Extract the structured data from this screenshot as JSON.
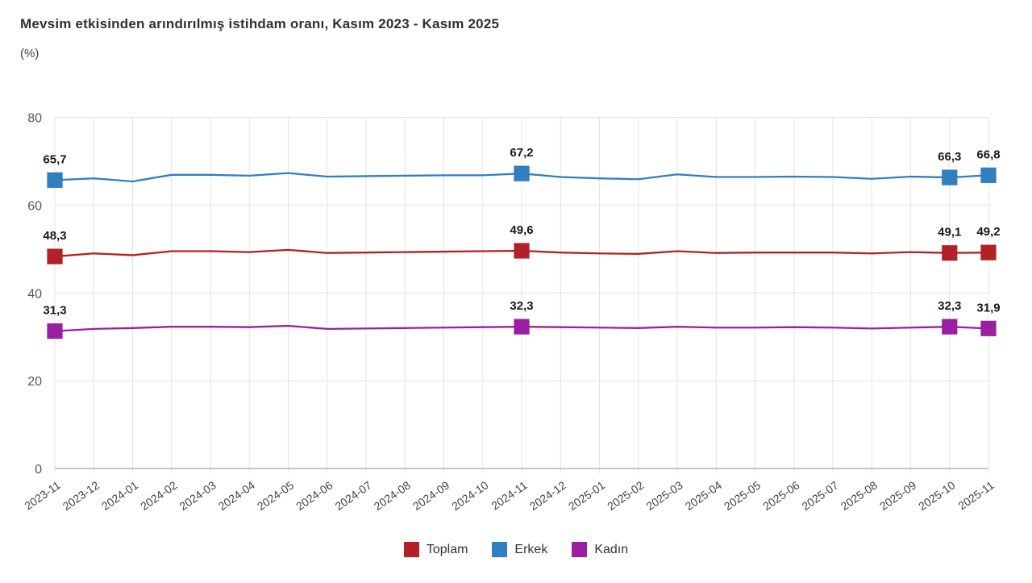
{
  "header": {
    "title": "Mevsim etkisinden arındırılmış istihdam oranı, Kasım 2023 - Kasım 2025",
    "subtitle": "(%)"
  },
  "colors": {
    "total": "#b32025",
    "male": "#2f7fc1",
    "female": "#9c1fa1",
    "grid": "#e3e3e3",
    "axis": "#b5b5b5",
    "y_tick_text": "#555555",
    "x_tick_text": "#424242",
    "data_label_text": "#1a1a1a"
  },
  "chart_data": {
    "type": "line",
    "title": "Mevsim etkisinden arındırılmış istihdam oranı, Kasım 2023 - Kasım 2025",
    "ylabel": "(%)",
    "xlabel": "",
    "grid": true,
    "legend_position": "bottom",
    "ylim": [
      0,
      80
    ],
    "yticks": [
      "0",
      "20",
      "40",
      "60",
      "80"
    ],
    "x_labels": [
      "2023-11",
      "2023-12",
      "2024-01",
      "2024-02",
      "2024-03",
      "2024-04",
      "2024-05",
      "2024-06",
      "2024-07",
      "2024-08",
      "2024-09",
      "2024-10",
      "2024-11",
      "2024-12",
      "2025-01",
      "2025-02",
      "2025-03",
      "2025-04",
      "2025-05",
      "2025-06",
      "2025-07",
      "2025-08",
      "2025-09",
      "2025-10",
      "2025-11"
    ],
    "series": [
      {
        "name": "Erkek",
        "color_key": "male",
        "values": [
          65.7,
          66.1,
          65.4,
          66.9,
          66.9,
          66.7,
          67.3,
          66.5,
          66.6,
          66.7,
          66.8,
          66.8,
          67.2,
          66.4,
          66.1,
          65.9,
          67.0,
          66.4,
          66.4,
          66.5,
          66.4,
          66.0,
          66.5,
          66.3,
          66.8
        ],
        "labeled_points": [
          {
            "index": 0,
            "label": "65,7"
          },
          {
            "index": 12,
            "label": "67,2"
          },
          {
            "index": 23,
            "label": "66,3"
          },
          {
            "index": 24,
            "label": "66,8"
          }
        ]
      },
      {
        "name": "Toplam",
        "color_key": "total",
        "values": [
          48.3,
          49.0,
          48.6,
          49.5,
          49.5,
          49.3,
          49.8,
          49.1,
          49.2,
          49.3,
          49.4,
          49.5,
          49.6,
          49.2,
          49.0,
          48.9,
          49.5,
          49.1,
          49.2,
          49.2,
          49.2,
          49.0,
          49.3,
          49.1,
          49.2
        ],
        "labeled_points": [
          {
            "index": 0,
            "label": "48,3"
          },
          {
            "index": 12,
            "label": "49,6"
          },
          {
            "index": 23,
            "label": "49,1"
          },
          {
            "index": 24,
            "label": "49,2"
          }
        ]
      },
      {
        "name": "Kadın",
        "color_key": "female",
        "values": [
          31.3,
          31.8,
          32.0,
          32.3,
          32.3,
          32.2,
          32.5,
          31.8,
          31.9,
          32.0,
          32.1,
          32.2,
          32.3,
          32.2,
          32.1,
          32.0,
          32.3,
          32.1,
          32.1,
          32.2,
          32.1,
          31.9,
          32.1,
          32.3,
          31.9
        ],
        "labeled_points": [
          {
            "index": 0,
            "label": "31,3"
          },
          {
            "index": 12,
            "label": "32,3"
          },
          {
            "index": 23,
            "label": "32,3"
          },
          {
            "index": 24,
            "label": "31,9"
          }
        ]
      }
    ]
  },
  "legend": {
    "items": [
      {
        "label": "Toplam",
        "color_key": "total"
      },
      {
        "label": "Erkek",
        "color_key": "male"
      },
      {
        "label": "Kadın",
        "color_key": "female"
      }
    ]
  }
}
